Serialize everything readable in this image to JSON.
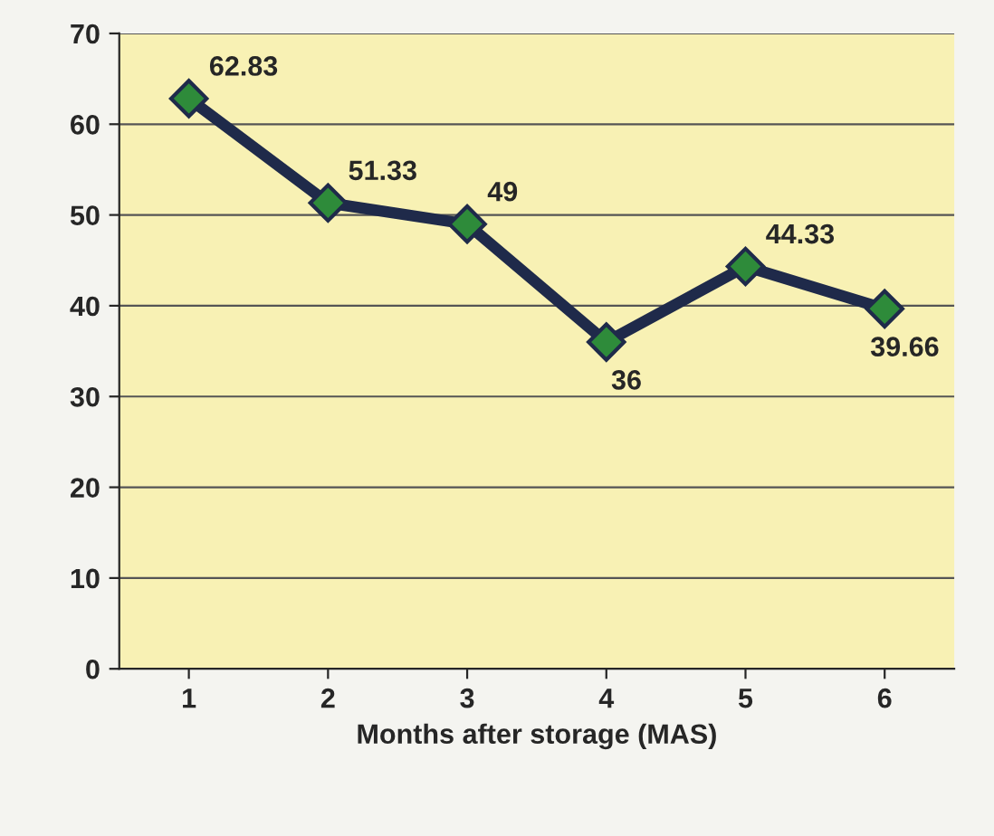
{
  "chart_data": {
    "type": "line",
    "xlabel": "Months after storage (MAS)",
    "categories": [
      "1",
      "2",
      "3",
      "4",
      "5",
      "6"
    ],
    "series": [
      {
        "color": "#1f2a4a",
        "values": [
          62.83,
          51.33,
          49,
          36,
          44.33,
          39.66
        ]
      }
    ],
    "ylim": [
      0,
      70
    ],
    "yticks": [
      0,
      10,
      20,
      30,
      40,
      50,
      60,
      70
    ],
    "grid": "y",
    "marker": "diamond",
    "line_style": "solid",
    "data_labels": true
  }
}
